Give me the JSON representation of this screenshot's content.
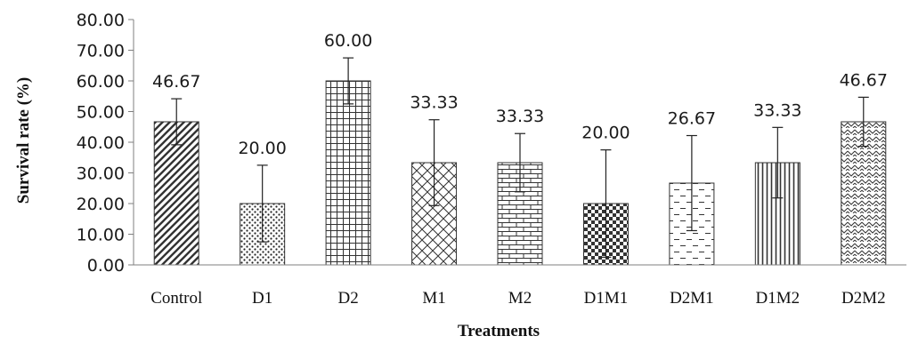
{
  "chart_data": {
    "type": "bar",
    "title": "",
    "xlabel": "Treatments",
    "ylabel": "Survival rate (%)",
    "ylim": [
      0,
      80
    ],
    "yticks": [
      "0.00",
      "10.00",
      "20.00",
      "30.00",
      "40.00",
      "50.00",
      "60.00",
      "70.00",
      "80.00"
    ],
    "grid": false,
    "legend": "none",
    "categories": [
      "Control",
      "D1",
      "D2",
      "M1",
      "M2",
      "D1M1",
      "D2M1",
      "D1M2",
      "D2M2"
    ],
    "values": [
      46.67,
      20.0,
      60.0,
      33.33,
      33.33,
      20.0,
      26.67,
      33.33,
      46.67
    ],
    "value_labels": [
      "46.67",
      "20.00",
      "60.00",
      "33.33",
      "33.33",
      "20.00",
      "26.67",
      "33.33",
      "46.67"
    ],
    "error": [
      7.5,
      12.5,
      7.5,
      14.0,
      9.5,
      17.5,
      15.5,
      11.5,
      8.0
    ],
    "patterns": [
      "diagonal-stripes",
      "dots",
      "grid",
      "diamond-crosshatch",
      "bricks",
      "checkerboard",
      "dashed-horizontal",
      "vertical-stripes",
      "zigzag-weave"
    ],
    "colors": {
      "bar_stroke": "#333333",
      "axis": "#7f7f7f",
      "text": "#1a1a1a"
    }
  }
}
